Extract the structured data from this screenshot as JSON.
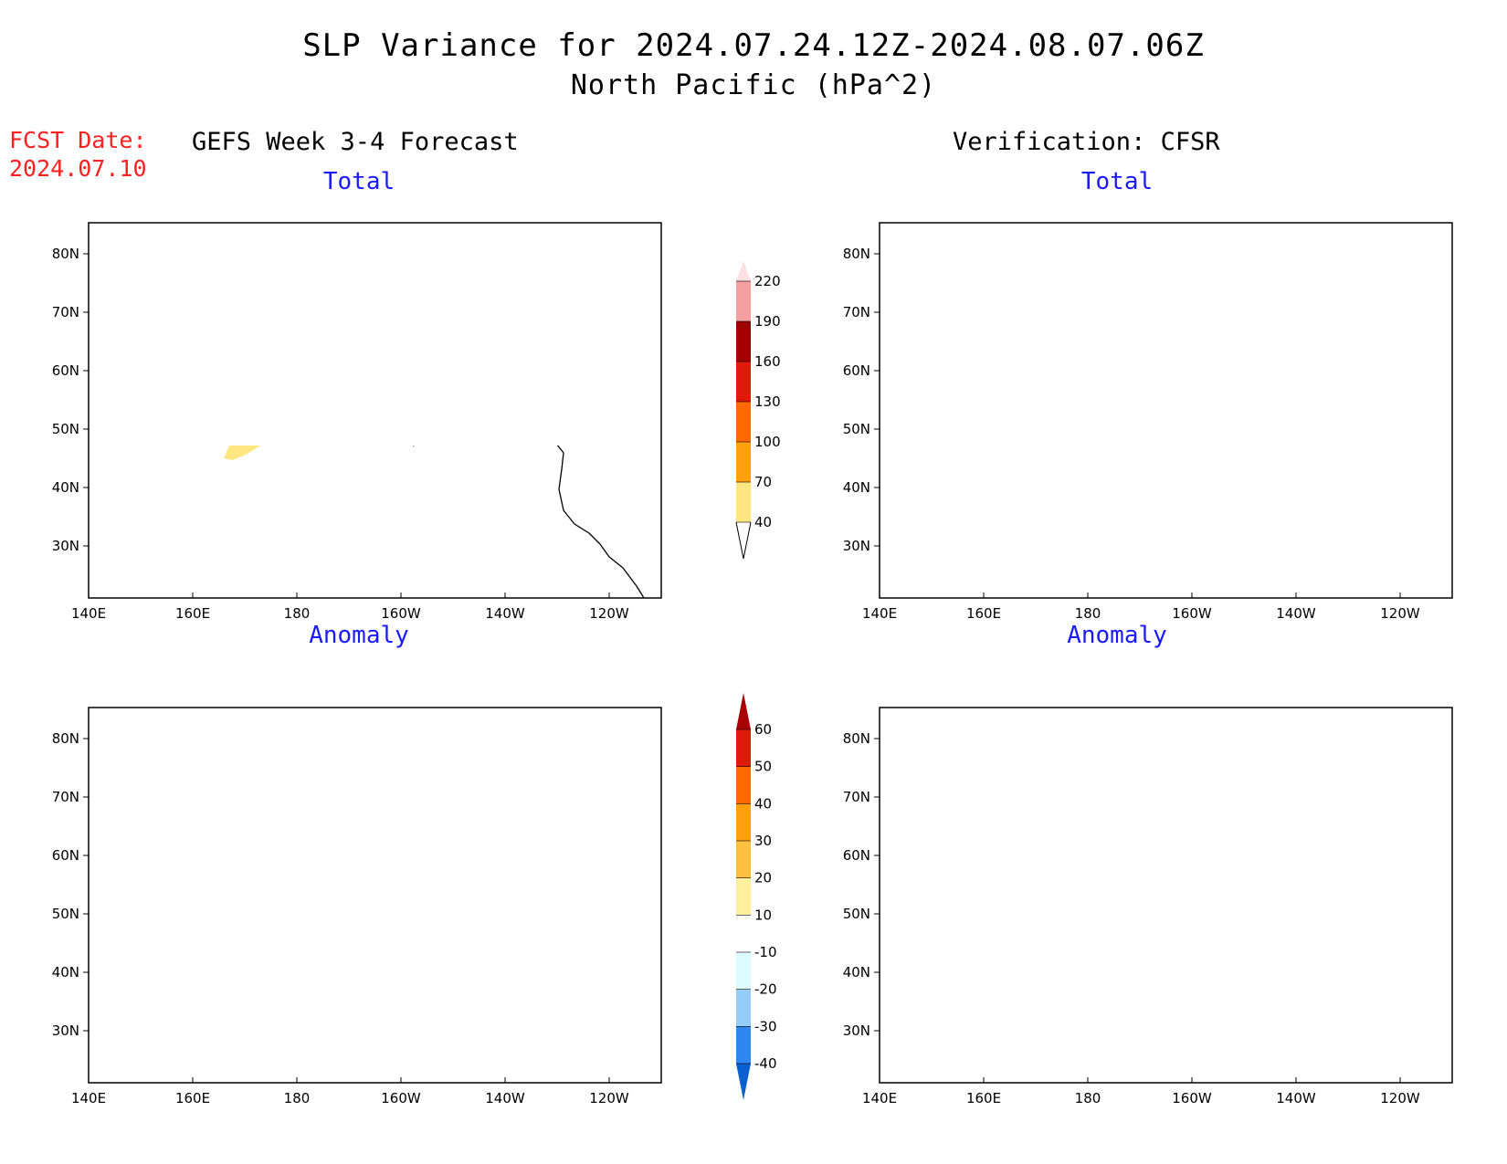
{
  "title": "SLP Variance for 2024.07.24.12Z-2024.08.07.06Z",
  "subtitle": "North Pacific (hPa^2)",
  "fcst": {
    "label": "FCST Date:",
    "date": "2024.07.10"
  },
  "columns": {
    "left": "GEFS Week 3-4 Forecast",
    "right": "Verification: CFSR"
  },
  "panels": {
    "top_left": "Total",
    "top_right": "Total",
    "bottom_left": "Anomaly",
    "bottom_right": "Anomaly"
  },
  "axes": {
    "lon_labels": [
      "140E",
      "160E",
      "180",
      "160W",
      "140W",
      "120W"
    ],
    "lat_labels": [
      "80N",
      "70N",
      "60N",
      "50N",
      "40N",
      "30N"
    ]
  },
  "colorbars": {
    "total": {
      "levels": [
        "40",
        "70",
        "100",
        "130",
        "160",
        "190",
        "220"
      ],
      "colors": [
        "#ffe680",
        "#ffa010",
        "#ff6a00",
        "#e01a0a",
        "#a00000",
        "#f4a0a0",
        "#fde0e0"
      ]
    },
    "anomaly": {
      "levels": [
        "-40",
        "-30",
        "-20",
        "-10",
        "10",
        "20",
        "30",
        "40",
        "50",
        "60"
      ],
      "colors": [
        "#0a60d0",
        "#2f86f0",
        "#96cdf8",
        "#dcfcff",
        "#ffffff",
        "#fff0a0",
        "#ffc040",
        "#ffa010",
        "#ff6a00",
        "#e01a0a",
        "#a80000"
      ]
    }
  },
  "fill_colors": {
    "yellow": "#ffe680",
    "light_yellow": "#fff3a8",
    "orange": "#ffc040",
    "dark_orange": "#f8a020",
    "light_blue": "#dcfcff",
    "mid_blue": "#96cdf8"
  }
}
